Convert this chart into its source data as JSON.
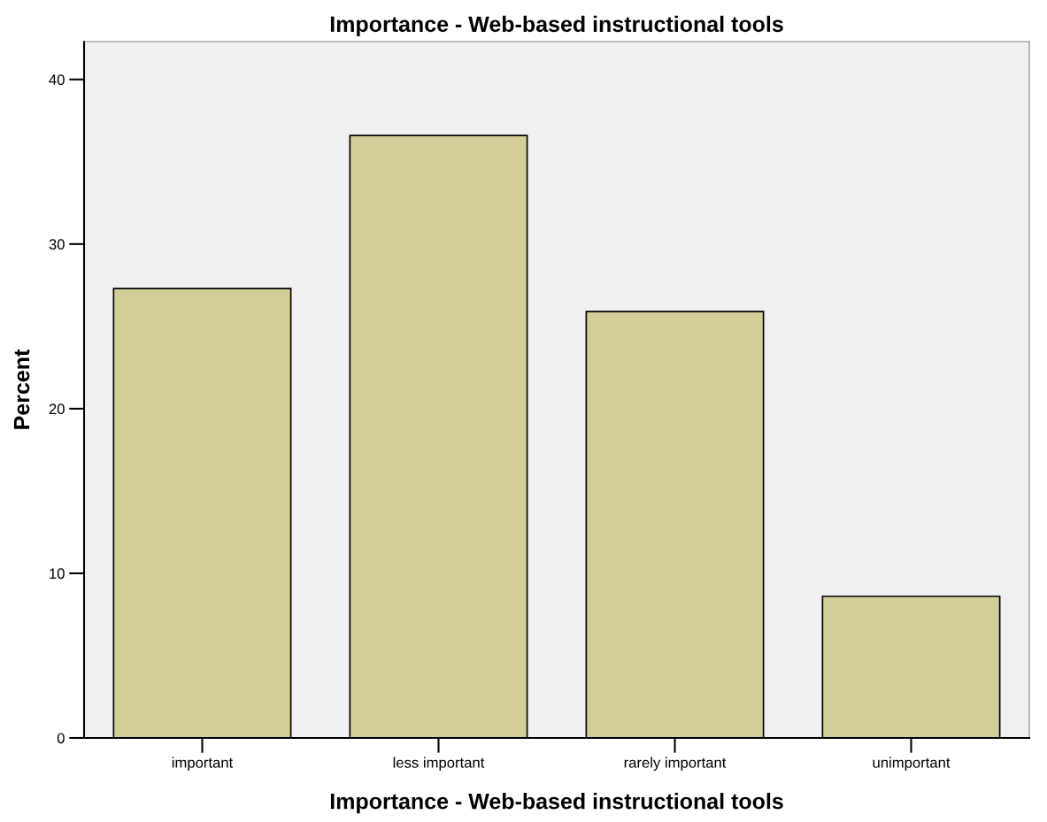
{
  "chart_data": {
    "type": "bar",
    "title": "Importance - Web-based instructional tools",
    "xlabel": "Importance - Web-based instructional tools",
    "ylabel": "Percent",
    "categories": [
      "important",
      "less important",
      "rarely important",
      "unimportant"
    ],
    "values": [
      27.3,
      36.6,
      25.9,
      8.6
    ],
    "color": "#d3ce97",
    "ylim": [
      0,
      42.3
    ],
    "yticks": [
      0,
      10,
      20,
      30,
      40
    ],
    "grid": false,
    "legend": false
  }
}
